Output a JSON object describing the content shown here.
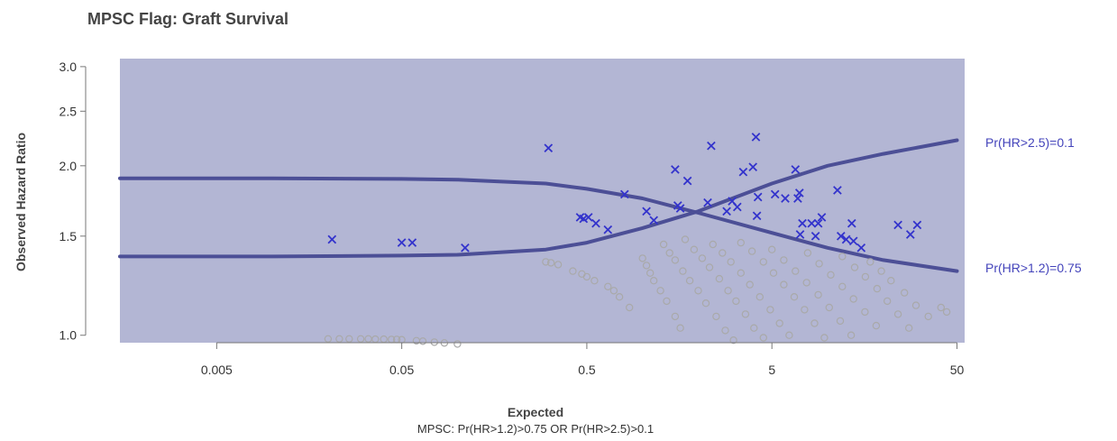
{
  "chart_data": {
    "type": "scatter",
    "title": "MPSC Flag: Graft Survival",
    "xlabel": "Expected",
    "ylabel": "Observed Hazard Ratio",
    "subtitle": "MPSC: Pr(HR>1.2)>0.75 OR Pr(HR>2.5)>0.1",
    "x_scale": "log",
    "y_scale": "log",
    "xlim": [
      0.0015,
      55
    ],
    "ylim": [
      0.97,
      3.1
    ],
    "x_ticks": [
      0.005,
      0.05,
      0.5,
      5,
      50
    ],
    "x_tick_labels": [
      "0.005",
      "0.05",
      "0.5",
      "5",
      "50"
    ],
    "y_ticks": [
      1.0,
      1.5,
      2.0,
      2.5,
      3.0
    ],
    "y_tick_labels": [
      "1.0",
      "1.5",
      "2.0",
      "2.5",
      "3.0"
    ],
    "grid": false,
    "colors": {
      "region": "#b3b6d4",
      "curve": "#4c4f96",
      "flagged": "#3333cc",
      "not_flagged": "#a9a9a9",
      "label": "#4444bb"
    },
    "curves": [
      {
        "label": "Pr(HR>2.5)=0.1",
        "points": [
          [
            0.0015,
            1.38
          ],
          [
            0.01,
            1.38
          ],
          [
            0.05,
            1.385
          ],
          [
            0.1,
            1.39
          ],
          [
            0.3,
            1.42
          ],
          [
            0.5,
            1.46
          ],
          [
            1.0,
            1.55
          ],
          [
            2.0,
            1.66
          ],
          [
            5.0,
            1.86
          ],
          [
            10,
            2.0
          ],
          [
            20,
            2.1
          ],
          [
            50,
            2.22
          ]
        ]
      },
      {
        "label": "Pr(HR>1.2)=0.75",
        "points": [
          [
            0.0015,
            1.9
          ],
          [
            0.01,
            1.9
          ],
          [
            0.05,
            1.895
          ],
          [
            0.1,
            1.89
          ],
          [
            0.3,
            1.86
          ],
          [
            0.5,
            1.82
          ],
          [
            1.0,
            1.75
          ],
          [
            2.0,
            1.65
          ],
          [
            5.0,
            1.52
          ],
          [
            10,
            1.43
          ],
          [
            20,
            1.36
          ],
          [
            50,
            1.3
          ]
        ]
      }
    ],
    "series": [
      {
        "marker": "x",
        "points": [
          [
            0.021,
            1.48
          ],
          [
            0.05,
            1.46
          ],
          [
            0.057,
            1.46
          ],
          [
            0.11,
            1.43
          ],
          [
            0.31,
            2.15
          ],
          [
            0.46,
            1.62
          ],
          [
            0.48,
            1.61
          ],
          [
            0.51,
            1.62
          ],
          [
            0.56,
            1.58
          ],
          [
            0.65,
            1.54
          ],
          [
            0.8,
            1.78
          ],
          [
            1.05,
            1.66
          ],
          [
            1.15,
            1.6
          ],
          [
            1.5,
            1.97
          ],
          [
            1.55,
            1.7
          ],
          [
            1.6,
            1.68
          ],
          [
            1.75,
            1.88
          ],
          [
            2.25,
            1.72
          ],
          [
            2.35,
            2.17
          ],
          [
            2.85,
            1.66
          ],
          [
            3.05,
            1.73
          ],
          [
            3.25,
            1.69
          ],
          [
            3.5,
            1.95
          ],
          [
            3.95,
            1.99
          ],
          [
            4.1,
            2.25
          ],
          [
            4.15,
            1.63
          ],
          [
            4.2,
            1.76
          ],
          [
            5.2,
            1.78
          ],
          [
            5.9,
            1.75
          ],
          [
            6.7,
            1.97
          ],
          [
            6.9,
            1.75
          ],
          [
            7.05,
            1.79
          ],
          [
            7.1,
            1.51
          ],
          [
            7.3,
            1.58
          ],
          [
            8.2,
            1.58
          ],
          [
            8.6,
            1.5
          ],
          [
            8.9,
            1.58
          ],
          [
            9.3,
            1.62
          ],
          [
            11.3,
            1.81
          ],
          [
            11.8,
            1.5
          ],
          [
            12.6,
            1.48
          ],
          [
            13.5,
            1.58
          ],
          [
            13.8,
            1.47
          ],
          [
            15.2,
            1.43
          ],
          [
            24,
            1.57
          ],
          [
            28,
            1.51
          ],
          [
            30.5,
            1.57
          ]
        ]
      },
      {
        "marker": "circle",
        "points": [
          [
            0.02,
            0.985
          ],
          [
            0.023,
            0.985
          ],
          [
            0.026,
            0.985
          ],
          [
            0.03,
            0.985
          ],
          [
            0.033,
            0.985
          ],
          [
            0.036,
            0.984
          ],
          [
            0.04,
            0.984
          ],
          [
            0.044,
            0.983
          ],
          [
            0.047,
            0.983
          ],
          [
            0.05,
            0.982
          ],
          [
            0.06,
            0.978
          ],
          [
            0.065,
            0.976
          ],
          [
            0.075,
            0.972
          ],
          [
            0.085,
            0.969
          ],
          [
            0.1,
            0.965
          ],
          [
            0.3,
            1.35
          ],
          [
            0.32,
            1.345
          ],
          [
            0.35,
            1.335
          ],
          [
            0.42,
            1.3
          ],
          [
            0.47,
            1.285
          ],
          [
            0.5,
            1.27
          ],
          [
            0.55,
            1.25
          ],
          [
            0.65,
            1.22
          ],
          [
            0.7,
            1.2
          ],
          [
            0.75,
            1.17
          ],
          [
            0.85,
            1.12
          ],
          [
            1.0,
            1.37
          ],
          [
            1.05,
            1.33
          ],
          [
            1.1,
            1.29
          ],
          [
            1.15,
            1.25
          ],
          [
            1.25,
            1.2
          ],
          [
            1.35,
            1.15
          ],
          [
            1.5,
            1.08
          ],
          [
            1.6,
            1.03
          ],
          [
            1.3,
            1.45
          ],
          [
            1.4,
            1.4
          ],
          [
            1.5,
            1.36
          ],
          [
            1.65,
            1.3
          ],
          [
            1.8,
            1.25
          ],
          [
            2.0,
            1.2
          ],
          [
            2.2,
            1.14
          ],
          [
            2.5,
            1.08
          ],
          [
            2.8,
            1.02
          ],
          [
            3.1,
            0.98
          ],
          [
            1.7,
            1.48
          ],
          [
            1.9,
            1.42
          ],
          [
            2.1,
            1.37
          ],
          [
            2.3,
            1.32
          ],
          [
            2.6,
            1.26
          ],
          [
            2.9,
            1.2
          ],
          [
            3.2,
            1.15
          ],
          [
            3.6,
            1.09
          ],
          [
            4.0,
            1.03
          ],
          [
            4.5,
            0.99
          ],
          [
            2.4,
            1.45
          ],
          [
            2.7,
            1.4
          ],
          [
            3.0,
            1.35
          ],
          [
            3.4,
            1.29
          ],
          [
            3.8,
            1.23
          ],
          [
            4.3,
            1.17
          ],
          [
            4.9,
            1.11
          ],
          [
            5.5,
            1.05
          ],
          [
            6.2,
            1.0
          ],
          [
            3.4,
            1.46
          ],
          [
            3.9,
            1.41
          ],
          [
            4.5,
            1.35
          ],
          [
            5.1,
            1.29
          ],
          [
            5.8,
            1.23
          ],
          [
            6.6,
            1.17
          ],
          [
            7.5,
            1.11
          ],
          [
            8.5,
            1.05
          ],
          [
            9.6,
            0.99
          ],
          [
            5.0,
            1.42
          ],
          [
            5.8,
            1.36
          ],
          [
            6.7,
            1.3
          ],
          [
            7.7,
            1.24
          ],
          [
            8.9,
            1.18
          ],
          [
            10.2,
            1.12
          ],
          [
            11.7,
            1.06
          ],
          [
            13.4,
            1.0
          ],
          [
            7.8,
            1.4
          ],
          [
            9.0,
            1.34
          ],
          [
            10.4,
            1.28
          ],
          [
            12.0,
            1.22
          ],
          [
            13.8,
            1.16
          ],
          [
            15.9,
            1.1
          ],
          [
            18.3,
            1.04
          ],
          [
            12.0,
            1.38
          ],
          [
            14.0,
            1.32
          ],
          [
            16.0,
            1.27
          ],
          [
            18.5,
            1.21
          ],
          [
            21.0,
            1.15
          ],
          [
            24.0,
            1.09
          ],
          [
            27.5,
            1.03
          ],
          [
            17.0,
            1.35
          ],
          [
            19.5,
            1.3
          ],
          [
            22.0,
            1.25
          ],
          [
            26.0,
            1.19
          ],
          [
            30.0,
            1.13
          ],
          [
            35.0,
            1.08
          ],
          [
            41.0,
            1.12
          ],
          [
            44.0,
            1.1
          ]
        ]
      }
    ],
    "annotations": [
      {
        "text": "Pr(HR>2.5)=0.1",
        "at_curve_end": 0
      },
      {
        "text": "Pr(HR>1.2)=0.75",
        "at_curve_end": 1
      }
    ]
  }
}
